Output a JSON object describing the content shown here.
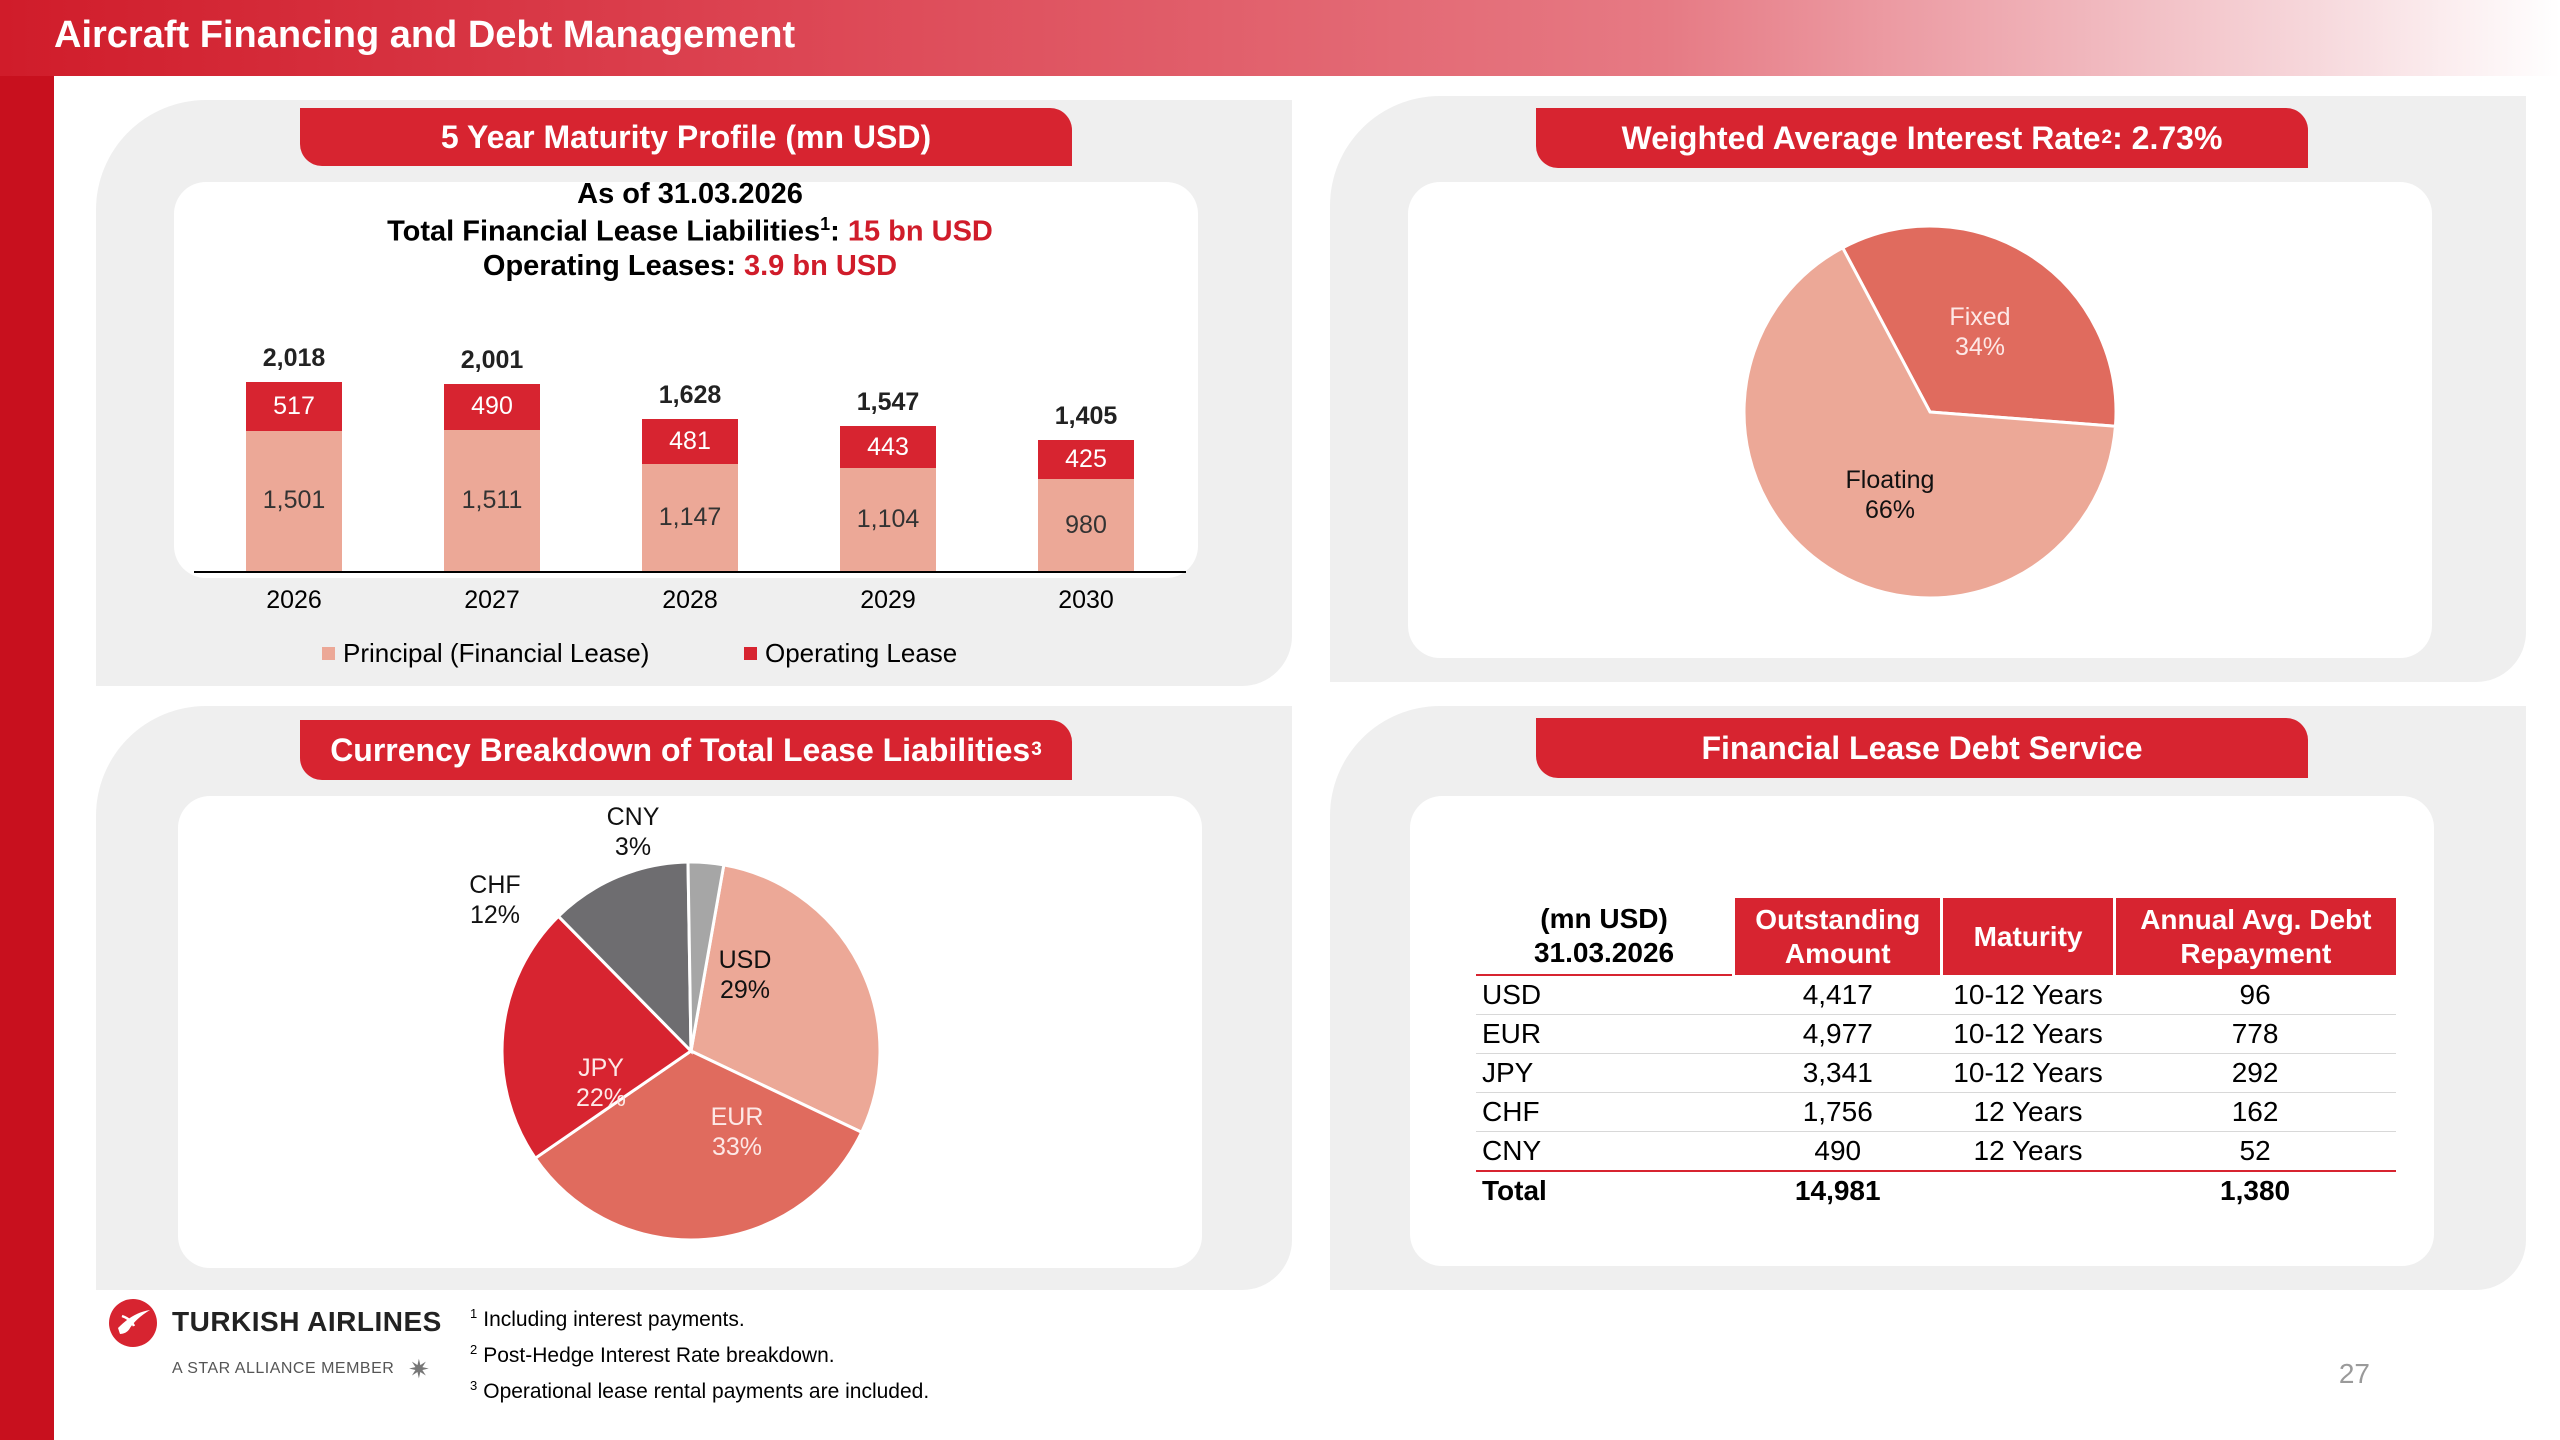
{
  "page_title": "Aircraft Financing and Debt Management",
  "maturity_panel": {
    "title": "5 Year Maturity Profile (mn USD)",
    "as_of": "As of 31.03.2026",
    "fll_label": "Total Financial Lease Liabilities",
    "fll_sup": "1",
    "fll_colon": ":",
    "fll_value": "15 bn USD",
    "ol_label": "Operating Leases:",
    "ol_value": "3.9 bn USD",
    "years": [
      "2026",
      "2027",
      "2028",
      "2029",
      "2030"
    ],
    "totals": [
      "2,018",
      "2,001",
      "1,628",
      "1,547",
      "1,405"
    ],
    "operating_labels": [
      "517",
      "490",
      "481",
      "443",
      "425"
    ],
    "principal_labels": [
      "1,501",
      "1,511",
      "1,147",
      "1,104",
      "980"
    ],
    "legend_principal": "Principal (Financial Lease)",
    "legend_operating": "Operating Lease"
  },
  "interest_panel": {
    "title_pre": "Weighted Average Interest Rate",
    "title_sup": "2",
    "title_post": ": 2.73%",
    "fixed_label": "Fixed",
    "fixed_pct": "34%",
    "floating_label": "Floating",
    "floating_pct": "66%"
  },
  "currency_panel": {
    "title": "Currency Breakdown of Total Lease Liabilities",
    "title_sup": "3",
    "slices": [
      {
        "label": "USD",
        "pct": "29%"
      },
      {
        "label": "EUR",
        "pct": "33%"
      },
      {
        "label": "JPY",
        "pct": "22%"
      },
      {
        "label": "CHF",
        "pct": "12%"
      },
      {
        "label": "CNY",
        "pct": "3%"
      }
    ]
  },
  "debt_panel": {
    "title": "Financial Lease Debt Service",
    "header_unit": "(mn USD)",
    "header_date": "31.03.2026",
    "col_outstanding": "Outstanding Amount",
    "col_maturity": "Maturity",
    "col_repayment": "Annual Avg. Debt Repayment",
    "rows": [
      {
        "currency": "USD",
        "outstanding": "4,417",
        "maturity": "10-12 Years",
        "repayment": "96"
      },
      {
        "currency": "EUR",
        "outstanding": "4,977",
        "maturity": "10-12 Years",
        "repayment": "778"
      },
      {
        "currency": "JPY",
        "outstanding": "3,341",
        "maturity": "10-12 Years",
        "repayment": "292"
      },
      {
        "currency": "CHF",
        "outstanding": "1,756",
        "maturity": "12 Years",
        "repayment": "162"
      },
      {
        "currency": "CNY",
        "outstanding": "490",
        "maturity": "12 Years",
        "repayment": "52"
      }
    ],
    "total_label": "Total",
    "total_outstanding": "14,981",
    "total_repayment": "1,380"
  },
  "chart_data": [
    {
      "type": "bar",
      "title": "5 Year Maturity Profile (mn USD)",
      "categories": [
        "2026",
        "2027",
        "2028",
        "2029",
        "2030"
      ],
      "series": [
        {
          "name": "Principal (Financial Lease)",
          "values": [
            1501,
            1511,
            1147,
            1104,
            980
          ],
          "color": "#eca897"
        },
        {
          "name": "Operating Lease",
          "values": [
            517,
            490,
            481,
            443,
            425
          ],
          "color": "#d72430"
        }
      ],
      "totals": [
        2018,
        2001,
        1628,
        1547,
        1405
      ],
      "stacked": true,
      "legend": "bottom",
      "ylim": [
        0,
        2100
      ]
    },
    {
      "type": "pie",
      "title": "Weighted Average Interest Rate: 2.73%",
      "categories": [
        "Fixed",
        "Floating"
      ],
      "values": [
        34,
        66
      ],
      "colors": [
        "#e06b5e",
        "#eca897"
      ]
    },
    {
      "type": "pie",
      "title": "Currency Breakdown of Total Lease Liabilities",
      "categories": [
        "USD",
        "EUR",
        "JPY",
        "CHF",
        "CNY"
      ],
      "values": [
        29,
        33,
        22,
        12,
        3
      ],
      "colors": [
        "#eca897",
        "#e06b5e",
        "#d72430",
        "#6e6d70",
        "#a6a6a6"
      ]
    }
  ],
  "brand": {
    "airline_name": "TURKISH AIRLINES",
    "tagline": "A STAR ALLIANCE MEMBER",
    "accent_color": "#d72430"
  },
  "footnotes": [
    {
      "num": "1",
      "text": "Including interest payments."
    },
    {
      "num": "2",
      "text": "Post-Hedge Interest Rate breakdown."
    },
    {
      "num": "3",
      "text": "Operational lease rental payments are included."
    }
  ],
  "page_number": "27"
}
